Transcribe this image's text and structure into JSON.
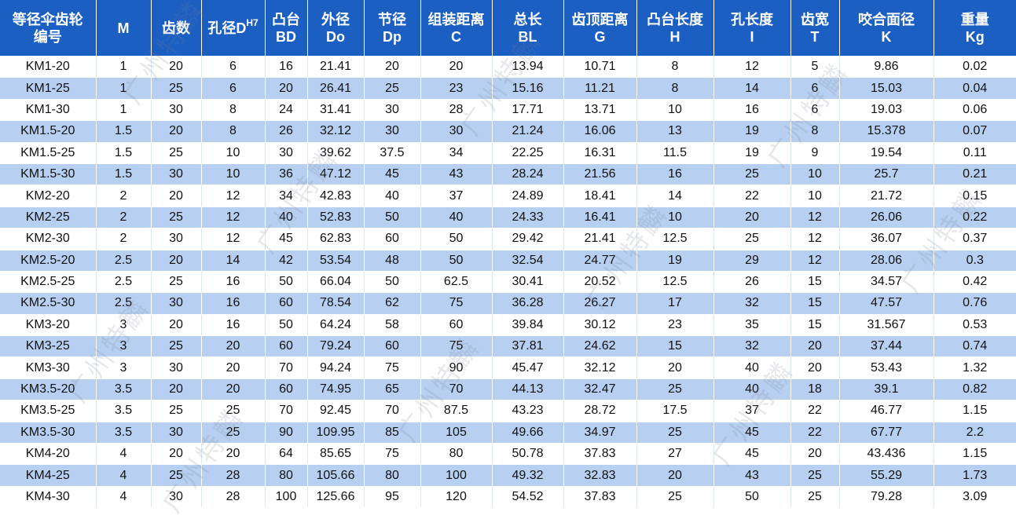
{
  "watermark_text": "广州特麟",
  "table": {
    "headers": [
      {
        "line1": "等径伞齿轮",
        "line2": "编号",
        "sup": ""
      },
      {
        "line1": "M",
        "line2": "",
        "sup": ""
      },
      {
        "line1": "齿数",
        "line2": "",
        "sup": ""
      },
      {
        "line1": "孔径D",
        "line2": "",
        "sup": "H7"
      },
      {
        "line1": "凸台",
        "line2": "BD",
        "sup": ""
      },
      {
        "line1": "外径",
        "line2": "Do",
        "sup": ""
      },
      {
        "line1": "节径",
        "line2": "Dp",
        "sup": ""
      },
      {
        "line1": "组装距离",
        "line2": "C",
        "sup": ""
      },
      {
        "line1": "总长",
        "line2": "BL",
        "sup": ""
      },
      {
        "line1": "齿顶距离",
        "line2": "G",
        "sup": ""
      },
      {
        "line1": "凸台长度",
        "line2": "H",
        "sup": ""
      },
      {
        "line1": "孔长度",
        "line2": "I",
        "sup": ""
      },
      {
        "line1": "齿宽",
        "line2": "T",
        "sup": ""
      },
      {
        "line1": "咬合面径",
        "line2": "K",
        "sup": ""
      },
      {
        "line1": "重量",
        "line2": "Kg",
        "sup": ""
      }
    ],
    "rows": [
      [
        "KM1-20",
        "1",
        "20",
        "6",
        "16",
        "21.41",
        "20",
        "20",
        "13.94",
        "10.71",
        "8",
        "12",
        "5",
        "9.86",
        "0.02"
      ],
      [
        "KM1-25",
        "1",
        "25",
        "6",
        "20",
        "26.41",
        "25",
        "23",
        "15.16",
        "11.21",
        "8",
        "14",
        "6",
        "15.03",
        "0.04"
      ],
      [
        "KM1-30",
        "1",
        "30",
        "8",
        "24",
        "31.41",
        "30",
        "28",
        "17.71",
        "13.71",
        "10",
        "16",
        "6",
        "19.03",
        "0.06"
      ],
      [
        "KM1.5-20",
        "1.5",
        "20",
        "8",
        "26",
        "32.12",
        "30",
        "30",
        "21.24",
        "16.06",
        "13",
        "19",
        "8",
        "15.378",
        "0.07"
      ],
      [
        "KM1.5-25",
        "1.5",
        "25",
        "10",
        "30",
        "39.62",
        "37.5",
        "34",
        "22.25",
        "16.31",
        "11.5",
        "19",
        "9",
        "19.54",
        "0.11"
      ],
      [
        "KM1.5-30",
        "1.5",
        "30",
        "10",
        "36",
        "47.12",
        "45",
        "43",
        "28.24",
        "21.56",
        "16",
        "25",
        "10",
        "25.7",
        "0.21"
      ],
      [
        "KM2-20",
        "2",
        "20",
        "12",
        "34",
        "42.83",
        "40",
        "37",
        "24.89",
        "18.41",
        "14",
        "22",
        "10",
        "21.72",
        "0.15"
      ],
      [
        "KM2-25",
        "2",
        "25",
        "12",
        "40",
        "52.83",
        "50",
        "40",
        "24.33",
        "16.41",
        "10",
        "20",
        "12",
        "26.06",
        "0.22"
      ],
      [
        "KM2-30",
        "2",
        "30",
        "12",
        "45",
        "62.83",
        "60",
        "50",
        "29.42",
        "21.41",
        "12.5",
        "25",
        "12",
        "36.07",
        "0.37"
      ],
      [
        "KM2.5-20",
        "2.5",
        "20",
        "14",
        "42",
        "53.54",
        "48",
        "50",
        "32.54",
        "24.77",
        "19",
        "29",
        "12",
        "28.06",
        "0.3"
      ],
      [
        "KM2.5-25",
        "2.5",
        "25",
        "16",
        "50",
        "66.04",
        "50",
        "62.5",
        "30.41",
        "20.52",
        "12.5",
        "26",
        "15",
        "34.57",
        "0.42"
      ],
      [
        "KM2.5-30",
        "2.5",
        "30",
        "16",
        "60",
        "78.54",
        "62",
        "75",
        "36.28",
        "26.27",
        "17",
        "32",
        "15",
        "47.57",
        "0.76"
      ],
      [
        "KM3-20",
        "3",
        "20",
        "16",
        "50",
        "64.24",
        "58",
        "60",
        "39.84",
        "30.12",
        "23",
        "35",
        "15",
        "31.567",
        "0.53"
      ],
      [
        "KM3-25",
        "3",
        "25",
        "20",
        "60",
        "79.24",
        "60",
        "75",
        "37.81",
        "24.62",
        "15",
        "32",
        "20",
        "37.44",
        "0.74"
      ],
      [
        "KM3-30",
        "3",
        "30",
        "20",
        "70",
        "94.24",
        "75",
        "90",
        "45.47",
        "32.12",
        "20",
        "40",
        "20",
        "53.43",
        "1.32"
      ],
      [
        "KM3.5-20",
        "3.5",
        "20",
        "20",
        "60",
        "74.95",
        "65",
        "70",
        "44.13",
        "32.47",
        "25",
        "40",
        "18",
        "39.1",
        "0.82"
      ],
      [
        "KM3.5-25",
        "3.5",
        "25",
        "25",
        "70",
        "92.45",
        "70",
        "87.5",
        "43.23",
        "28.72",
        "17.5",
        "37",
        "22",
        "46.77",
        "1.15"
      ],
      [
        "KM3.5-30",
        "3.5",
        "30",
        "25",
        "90",
        "109.95",
        "85",
        "105",
        "49.66",
        "34.97",
        "25",
        "45",
        "22",
        "67.77",
        "2.2"
      ],
      [
        "KM4-20",
        "4",
        "20",
        "20",
        "64",
        "85.65",
        "75",
        "80",
        "50.78",
        "37.83",
        "27",
        "45",
        "20",
        "43.436",
        "1.15"
      ],
      [
        "KM4-25",
        "4",
        "25",
        "28",
        "80",
        "105.66",
        "80",
        "100",
        "49.32",
        "32.83",
        "20",
        "43",
        "25",
        "55.29",
        "1.73"
      ],
      [
        "KM4-30",
        "4",
        "30",
        "28",
        "100",
        "125.66",
        "95",
        "120",
        "54.52",
        "37.83",
        "25",
        "50",
        "25",
        "79.28",
        "3.09"
      ]
    ]
  },
  "colors": {
    "header_bg": "#1b5fc3",
    "row_odd": "#ffffff",
    "row_even": "#b7cff0"
  }
}
